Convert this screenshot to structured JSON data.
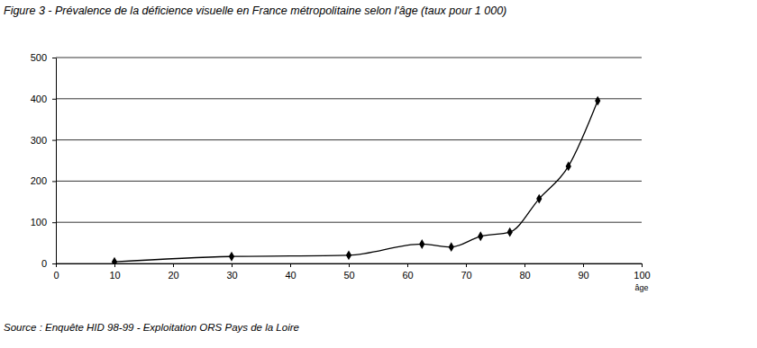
{
  "chart_data": {
    "type": "line",
    "title": "Figure 3 - Prévalence de la déficience visuelle en France métropolitaine selon l'âge (taux pour 1 000)",
    "source": "Source : Enquête HID 98-99 - Exploitation ORS Pays de la Loire",
    "x_label": "âge",
    "x": [
      10,
      30,
      50,
      62.5,
      67.5,
      72.5,
      77.5,
      82.5,
      87.5,
      92.5
    ],
    "values": [
      4,
      17,
      20,
      47,
      40,
      66,
      76,
      157,
      236,
      395
    ],
    "color": "#000000",
    "marker": "diamond",
    "line_style": "smooth",
    "xlim": [
      0,
      100
    ],
    "xticks": [
      0,
      10,
      20,
      30,
      40,
      50,
      60,
      70,
      80,
      90,
      100
    ],
    "ylim": [
      0,
      500
    ],
    "yticks": [
      0,
      100,
      200,
      300,
      400,
      500
    ],
    "grid": true
  }
}
